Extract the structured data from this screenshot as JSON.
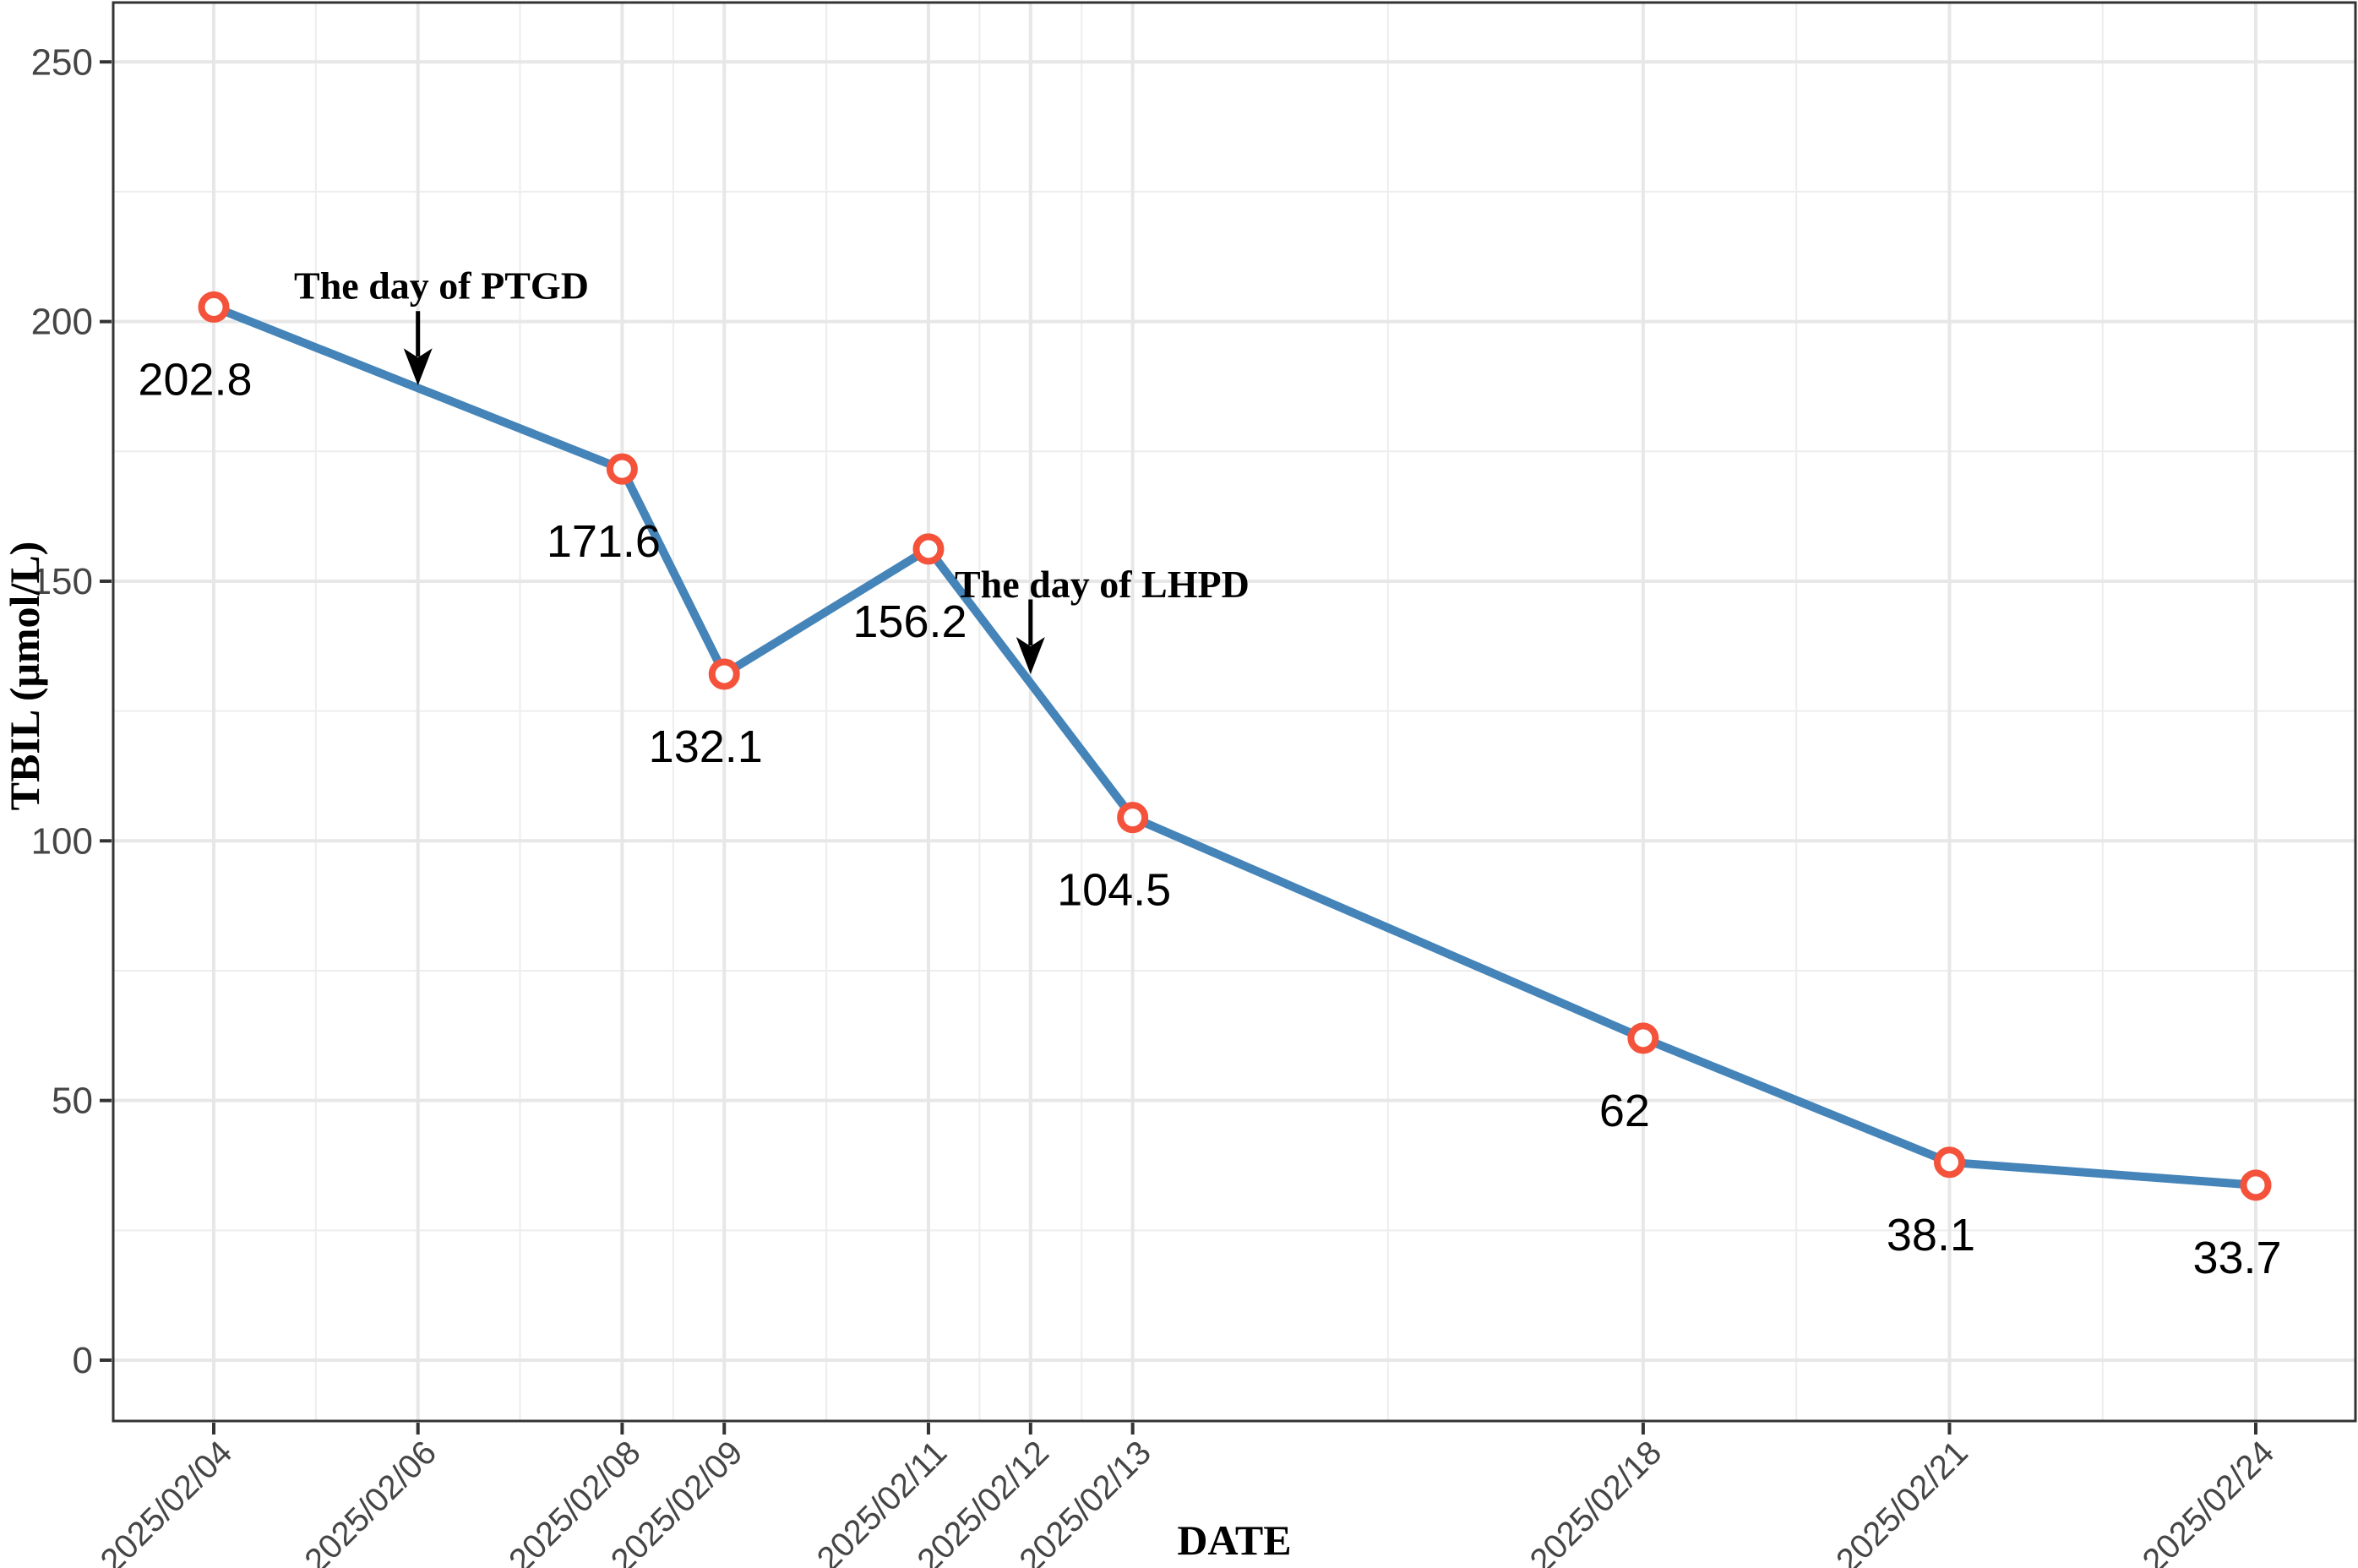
{
  "chart_data": {
    "type": "line",
    "title": "",
    "xlabel": "DATE",
    "ylabel": "TBIL (μmol/L)",
    "grid": true,
    "legend": false,
    "ylim": [
      0,
      250
    ],
    "x_ticks": [
      {
        "day": 4,
        "label": "2025/02/04"
      },
      {
        "day": 6,
        "label": "2025/02/06"
      },
      {
        "day": 8,
        "label": "2025/02/08"
      },
      {
        "day": 9,
        "label": "2025/02/09"
      },
      {
        "day": 11,
        "label": "2025/02/11"
      },
      {
        "day": 12,
        "label": "2025/02/12"
      },
      {
        "day": 13,
        "label": "2025/02/13"
      },
      {
        "day": 18,
        "label": "2025/02/18"
      },
      {
        "day": 21,
        "label": "2025/02/21"
      },
      {
        "day": 24,
        "label": "2025/02/24"
      }
    ],
    "y_ticks": [
      {
        "value": 0,
        "label": "0"
      },
      {
        "value": 50,
        "label": "50"
      },
      {
        "value": 100,
        "label": "100"
      },
      {
        "value": 150,
        "label": "150"
      },
      {
        "value": 200,
        "label": "200"
      },
      {
        "value": 250,
        "label": "250"
      }
    ],
    "series": [
      {
        "name": "TBIL",
        "line_color": "#4584b8",
        "marker_ring_color": "#f4523b",
        "marker_fill_color": "#ffffff",
        "points": [
          {
            "date": "2025/02/04",
            "day": 4,
            "value": 202.8,
            "label": "202.8"
          },
          {
            "date": "2025/02/08",
            "day": 8,
            "value": 171.6,
            "label": "171.6"
          },
          {
            "date": "2025/02/09",
            "day": 9,
            "value": 132.1,
            "label": "132.1"
          },
          {
            "date": "2025/02/11",
            "day": 11,
            "value": 156.2,
            "label": "156.2"
          },
          {
            "date": "2025/02/13",
            "day": 13,
            "value": 104.5,
            "label": "104.5"
          },
          {
            "date": "2025/02/18",
            "day": 18,
            "value": 62,
            "label": "62"
          },
          {
            "date": "2025/02/21",
            "day": 21,
            "value": 38.1,
            "label": "38.1"
          },
          {
            "date": "2025/02/24",
            "day": 24,
            "value": 33.7,
            "label": "33.7"
          }
        ]
      }
    ],
    "annotations": [
      {
        "text": "The day of PTGD",
        "text_day": 6.23,
        "text_value": 207.0,
        "arrow_day": 6,
        "arrow_from_value": 202.0,
        "arrow_to_value": 187.7
      },
      {
        "text": "The day of LHPD",
        "text_day": 12.7,
        "text_value": 149.5,
        "arrow_day": 12,
        "arrow_from_value": 146.5,
        "arrow_to_value": 132.1
      }
    ],
    "colors": {
      "grid_major": "#e7e7e7",
      "grid_minor": "#ededed",
      "axis_text": "#454545",
      "panel_border": "#333333",
      "tick_mark": "#333333",
      "annotation": "#000000",
      "data_label": "#000000"
    }
  }
}
